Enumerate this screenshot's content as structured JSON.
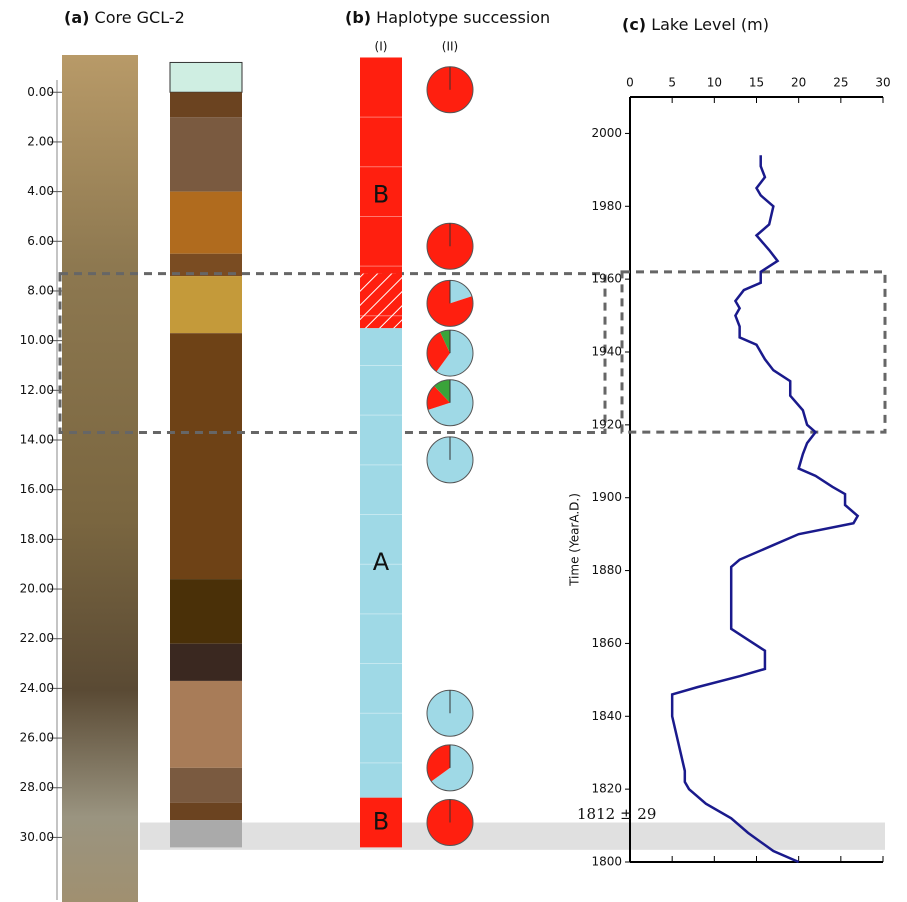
{
  "chart_data": [
    {
      "type": "core",
      "panel": "(a)",
      "title": "Core GCL-2",
      "ylim": [
        -1.5,
        32.6
      ],
      "yticks": [
        {
          "value": 0,
          "label": "0.00"
        },
        {
          "value": 2,
          "label": "2.00"
        },
        {
          "value": 4,
          "label": "4.00"
        },
        {
          "value": 6,
          "label": "6.00"
        },
        {
          "value": 8,
          "label": "8.00"
        },
        {
          "value": 10,
          "label": "10.00"
        },
        {
          "value": 12,
          "label": "12.00"
        },
        {
          "value": 14,
          "label": "14.00"
        },
        {
          "value": 16,
          "label": "16.00"
        },
        {
          "value": 18,
          "label": "18.00"
        },
        {
          "value": 20,
          "label": "20.00"
        },
        {
          "value": 22,
          "label": "22.00"
        },
        {
          "value": 24,
          "label": "24.00"
        },
        {
          "value": 26,
          "label": "26.00"
        },
        {
          "value": 28,
          "label": "28.00"
        },
        {
          "value": 30,
          "label": "30.00"
        }
      ],
      "layers": [
        {
          "top": -1.2,
          "bottom": 0.0,
          "color": "#cfeee2"
        },
        {
          "top": 0.0,
          "bottom": 1.0,
          "color": "#6b4320"
        },
        {
          "top": 1.0,
          "bottom": 4.0,
          "color": "#7a5a40"
        },
        {
          "top": 4.0,
          "bottom": 6.5,
          "color": "#b06b1e"
        },
        {
          "top": 6.5,
          "bottom": 7.4,
          "color": "#7a4c22"
        },
        {
          "top": 7.4,
          "bottom": 9.7,
          "color": "#c49a3a"
        },
        {
          "top": 9.7,
          "bottom": 19.6,
          "color": "#6e4216"
        },
        {
          "top": 19.6,
          "bottom": 22.2,
          "color": "#4a3008"
        },
        {
          "top": 22.2,
          "bottom": 23.7,
          "color": "#3a2820"
        },
        {
          "top": 23.7,
          "bottom": 27.2,
          "color": "#a87c58"
        },
        {
          "top": 27.2,
          "bottom": 28.6,
          "color": "#7a5a40"
        },
        {
          "top": 28.6,
          "bottom": 29.3,
          "color": "#6b4320"
        },
        {
          "top": 29.3,
          "bottom": 30.4,
          "color": "#aaaaaa"
        }
      ],
      "dashed_box": [
        7.3,
        13.7
      ],
      "shaded_band": [
        29.4,
        30.5
      ]
    },
    {
      "type": "haplotype",
      "panel": "(b)",
      "title": "Haplotype succession",
      "columns": [
        "(I)",
        "(II)"
      ],
      "segments": [
        {
          "top": -1.4,
          "bottom": 7.3,
          "color": "#ff1f0f",
          "label": "B"
        },
        {
          "top": 7.3,
          "bottom": 9.5,
          "color": "#ff1f0f",
          "hatched": true
        },
        {
          "top": 9.5,
          "bottom": 28.4,
          "color": "#9fd9e6",
          "label": "A"
        },
        {
          "top": 28.4,
          "bottom": 30.4,
          "color": "#ff1f0f",
          "label": "B"
        }
      ],
      "pie_colors": [
        "#9fd9e6",
        "#ff1f0f",
        "#3aa33a"
      ],
      "pies": [
        {
          "depth": -0.1,
          "shares": [
            0,
            100,
            0
          ]
        },
        {
          "depth": 6.2,
          "shares": [
            0,
            100,
            0
          ]
        },
        {
          "depth": 8.5,
          "shares": [
            20,
            80,
            0
          ]
        },
        {
          "depth": 10.5,
          "shares": [
            60,
            33,
            7
          ]
        },
        {
          "depth": 12.5,
          "shares": [
            70,
            18,
            12
          ]
        },
        {
          "depth": 14.8,
          "shares": [
            100,
            0,
            0
          ]
        },
        {
          "depth": 25.0,
          "shares": [
            100,
            0,
            0
          ]
        },
        {
          "depth": 27.2,
          "shares": [
            65,
            35,
            0
          ]
        },
        {
          "depth": 29.4,
          "shares": [
            0,
            100,
            0
          ]
        }
      ]
    },
    {
      "type": "line",
      "panel": "(c)",
      "title": "Lake Level (m)",
      "ylabel": "Time (YearA.D.)",
      "annotation": "1812 ± 29",
      "xlim": [
        0,
        30
      ],
      "xticks": [
        0,
        5,
        10,
        15,
        20,
        25,
        30
      ],
      "ylim": [
        1800,
        2010
      ],
      "yticks": [
        1800,
        1820,
        1840,
        1860,
        1880,
        1900,
        1920,
        1940,
        1960,
        1980,
        2000
      ],
      "dashed_box": [
        1918,
        1962
      ],
      "x": [
        1800,
        1803,
        1808,
        1812,
        1816,
        1820,
        1822,
        1825,
        1830,
        1835,
        1840,
        1846,
        1848,
        1851,
        1853,
        1858,
        1861,
        1864,
        1873,
        1881,
        1883,
        1887,
        1890,
        1893,
        1895,
        1898,
        1901,
        1903,
        1906,
        1908,
        1912,
        1915,
        1918,
        1920,
        1924,
        1928,
        1932,
        1935,
        1938,
        1942,
        1944,
        1947,
        1950,
        1952,
        1954,
        1957,
        1959,
        1962,
        1965,
        1968,
        1972,
        1975,
        1980,
        1983,
        1985,
        1988,
        1991,
        1994
      ],
      "series": [
        {
          "color": "#1a1a8c",
          "values": [
            20,
            17,
            14,
            12,
            9,
            7,
            6.5,
            6.5,
            6,
            5.5,
            5,
            5,
            8,
            13,
            16,
            16,
            14,
            12,
            12,
            12,
            13,
            17,
            20,
            26.5,
            27,
            25.5,
            25.5,
            24,
            22,
            20,
            20.5,
            21,
            22,
            21,
            20.5,
            19,
            19,
            17,
            16,
            15,
            13,
            13,
            12.5,
            13,
            12.5,
            13.5,
            15.5,
            15.5,
            17.5,
            16.5,
            15,
            16.5,
            17,
            15.5,
            15,
            16,
            15.5,
            15.5
          ]
        }
      ]
    }
  ]
}
